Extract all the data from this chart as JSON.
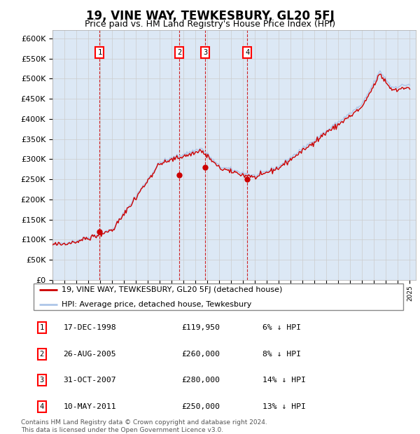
{
  "title": "19, VINE WAY, TEWKESBURY, GL20 5FJ",
  "subtitle": "Price paid vs. HM Land Registry's House Price Index (HPI)",
  "ylabel_ticks": [
    "£0",
    "£50K",
    "£100K",
    "£150K",
    "£200K",
    "£250K",
    "£300K",
    "£350K",
    "£400K",
    "£450K",
    "£500K",
    "£550K",
    "£600K"
  ],
  "ytick_values": [
    0,
    50000,
    100000,
    150000,
    200000,
    250000,
    300000,
    350000,
    400000,
    450000,
    500000,
    550000,
    600000
  ],
  "ylim": [
    0,
    620000
  ],
  "xlim_start": 1995.0,
  "xlim_end": 2025.5,
  "sale_dates_decimal": [
    1998.96,
    2005.65,
    2007.83,
    2011.36
  ],
  "sale_prices": [
    119950,
    260000,
    280000,
    250000
  ],
  "sale_labels": [
    "1",
    "2",
    "3",
    "4"
  ],
  "legend_line1": "19, VINE WAY, TEWKESBURY, GL20 5FJ (detached house)",
  "legend_line2": "HPI: Average price, detached house, Tewkesbury",
  "table_data": [
    {
      "num": "1",
      "date": "17-DEC-1998",
      "price": "£119,950",
      "hpi": "6% ↓ HPI"
    },
    {
      "num": "2",
      "date": "26-AUG-2005",
      "price": "£260,000",
      "hpi": "8% ↓ HPI"
    },
    {
      "num": "3",
      "date": "31-OCT-2007",
      "price": "£280,000",
      "hpi": "14% ↓ HPI"
    },
    {
      "num": "4",
      "date": "10-MAY-2011",
      "price": "£250,000",
      "hpi": "13% ↓ HPI"
    }
  ],
  "footnote": "Contains HM Land Registry data © Crown copyright and database right 2024.\nThis data is licensed under the Open Government Licence v3.0.",
  "hpi_color": "#aec6e8",
  "sale_line_color": "#cc0000",
  "sale_marker_color": "#cc0000",
  "dashed_line_color": "#cc0000",
  "grid_color": "#cccccc",
  "bg_color": "#dce8f5",
  "title_fontsize": 12,
  "subtitle_fontsize": 9,
  "axis_fontsize": 8
}
